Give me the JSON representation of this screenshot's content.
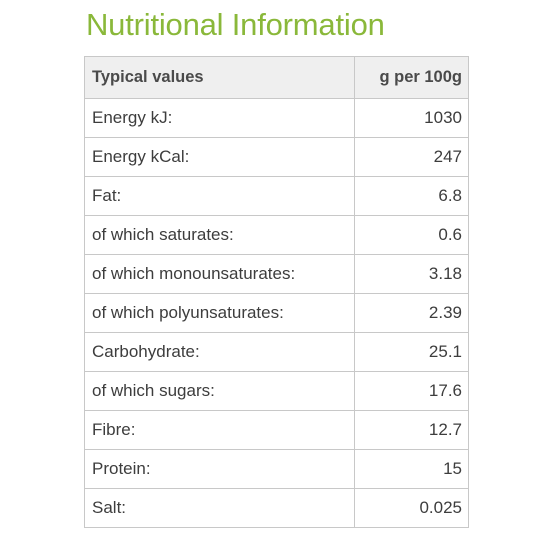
{
  "title": "Nutritional Information",
  "table": {
    "headers": [
      "Typical values",
      "g per 100g"
    ],
    "rows": [
      {
        "label": "Energy kJ:",
        "value": "1030"
      },
      {
        "label": "Energy kCal:",
        "value": "247"
      },
      {
        "label": "Fat:",
        "value": "6.8"
      },
      {
        "label": "of which saturates:",
        "value": "0.6"
      },
      {
        "label": "of which monounsaturates:",
        "value": "3.18"
      },
      {
        "label": "of which polyunsaturates:",
        "value": "2.39"
      },
      {
        "label": "Carbohydrate:",
        "value": "25.1"
      },
      {
        "label": "of which sugars:",
        "value": "17.6"
      },
      {
        "label": "Fibre:",
        "value": "12.7"
      },
      {
        "label": "Protein:",
        "value": "15"
      },
      {
        "label": "Salt:",
        "value": "0.025"
      }
    ]
  },
  "colors": {
    "title": "#8ab83a",
    "header_background": "#efefef",
    "border": "#c8c8c8",
    "text": "#3d3d3d"
  }
}
